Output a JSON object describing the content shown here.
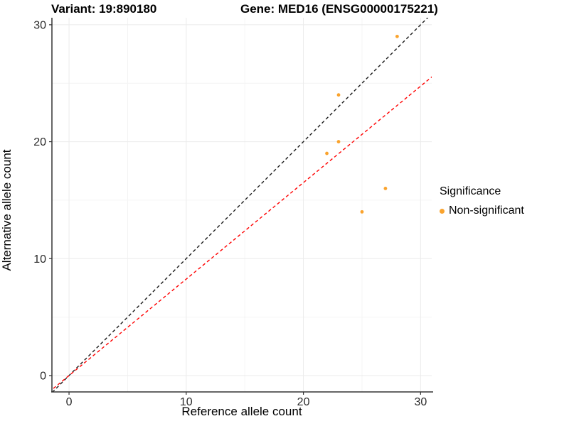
{
  "titles": {
    "variant": "Variant: 19:890180",
    "gene": "Gene: MED16 (ENSG00000175221)"
  },
  "chart_data": {
    "type": "scatter",
    "xlabel": "Reference allele count",
    "ylabel": "Alternative allele count",
    "xlim": [
      -1.46,
      30.95
    ],
    "ylim": [
      -1.4,
      30.6
    ],
    "x_ticks": [
      0,
      10,
      20,
      30
    ],
    "y_ticks": [
      0,
      10,
      20,
      30
    ],
    "x_minor_ticks": [
      5,
      15,
      25
    ],
    "y_minor_ticks": [
      5,
      15,
      25
    ],
    "grid": "on",
    "series": [
      {
        "name": "Non-significant",
        "color": "#FAA32D",
        "points": [
          {
            "x": 22,
            "y": 19
          },
          {
            "x": 23,
            "y": 20
          },
          {
            "x": 23,
            "y": 24
          },
          {
            "x": 25,
            "y": 14
          },
          {
            "x": 27,
            "y": 16
          },
          {
            "x": 28,
            "y": 29
          }
        ]
      }
    ],
    "reference_lines": [
      {
        "name": "identity-line",
        "slope": 1,
        "intercept": 0,
        "color": "#1a1a1a",
        "style": "dashed"
      },
      {
        "name": "expected-ratio-line",
        "slope": 0.825,
        "intercept": 0,
        "color": "#FF0000",
        "style": "dashed"
      }
    ],
    "legend": {
      "title": "Significance",
      "position": "right",
      "entries": [
        {
          "label": "Non-significant",
          "color": "#FAA32D"
        }
      ]
    },
    "colors": {
      "major_gridline": "#ebebeb",
      "minor_gridline": "#f4f4f4",
      "axis_line": "#333333",
      "tick_text": "#2b2b2b"
    }
  }
}
